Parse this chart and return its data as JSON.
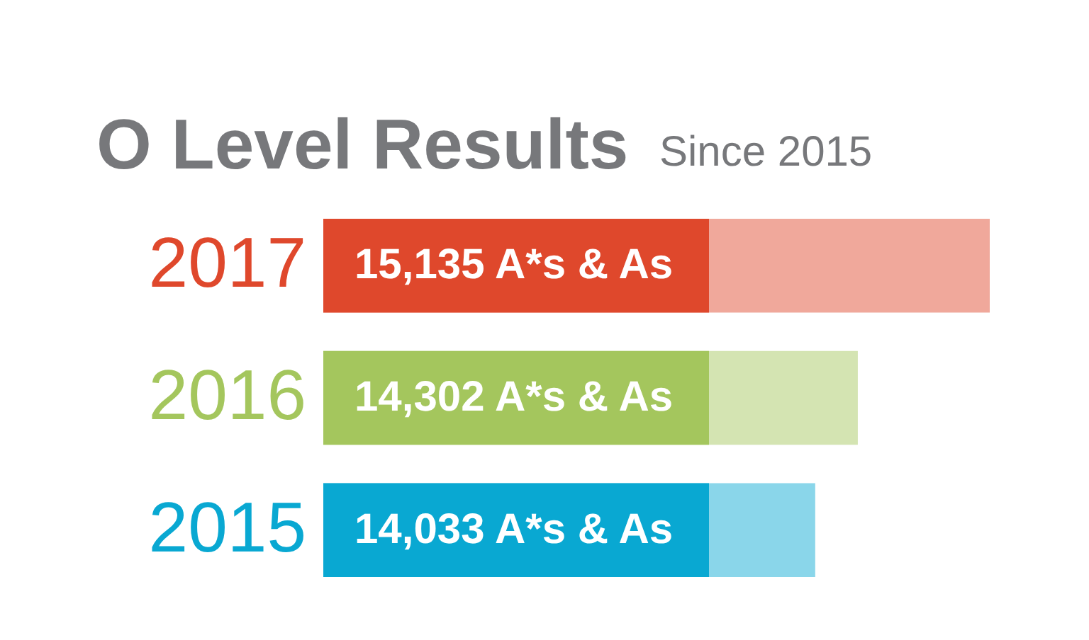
{
  "chart_data": {
    "type": "bar",
    "orientation": "horizontal",
    "title": "O Level Results",
    "subtitle": "Since 2015",
    "categories": [
      "2017",
      "2016",
      "2015"
    ],
    "values": [
      15135,
      14302,
      14033
    ],
    "colors": [
      "#f0a89b",
      "#d4e4b2",
      "#8ad6ea"
    ],
    "xlim": [
      10927,
      15135
    ],
    "value_labels": [
      "15,135 A*s & As",
      "14,302 A*s & As",
      "14,033 A*s & As"
    ]
  }
}
